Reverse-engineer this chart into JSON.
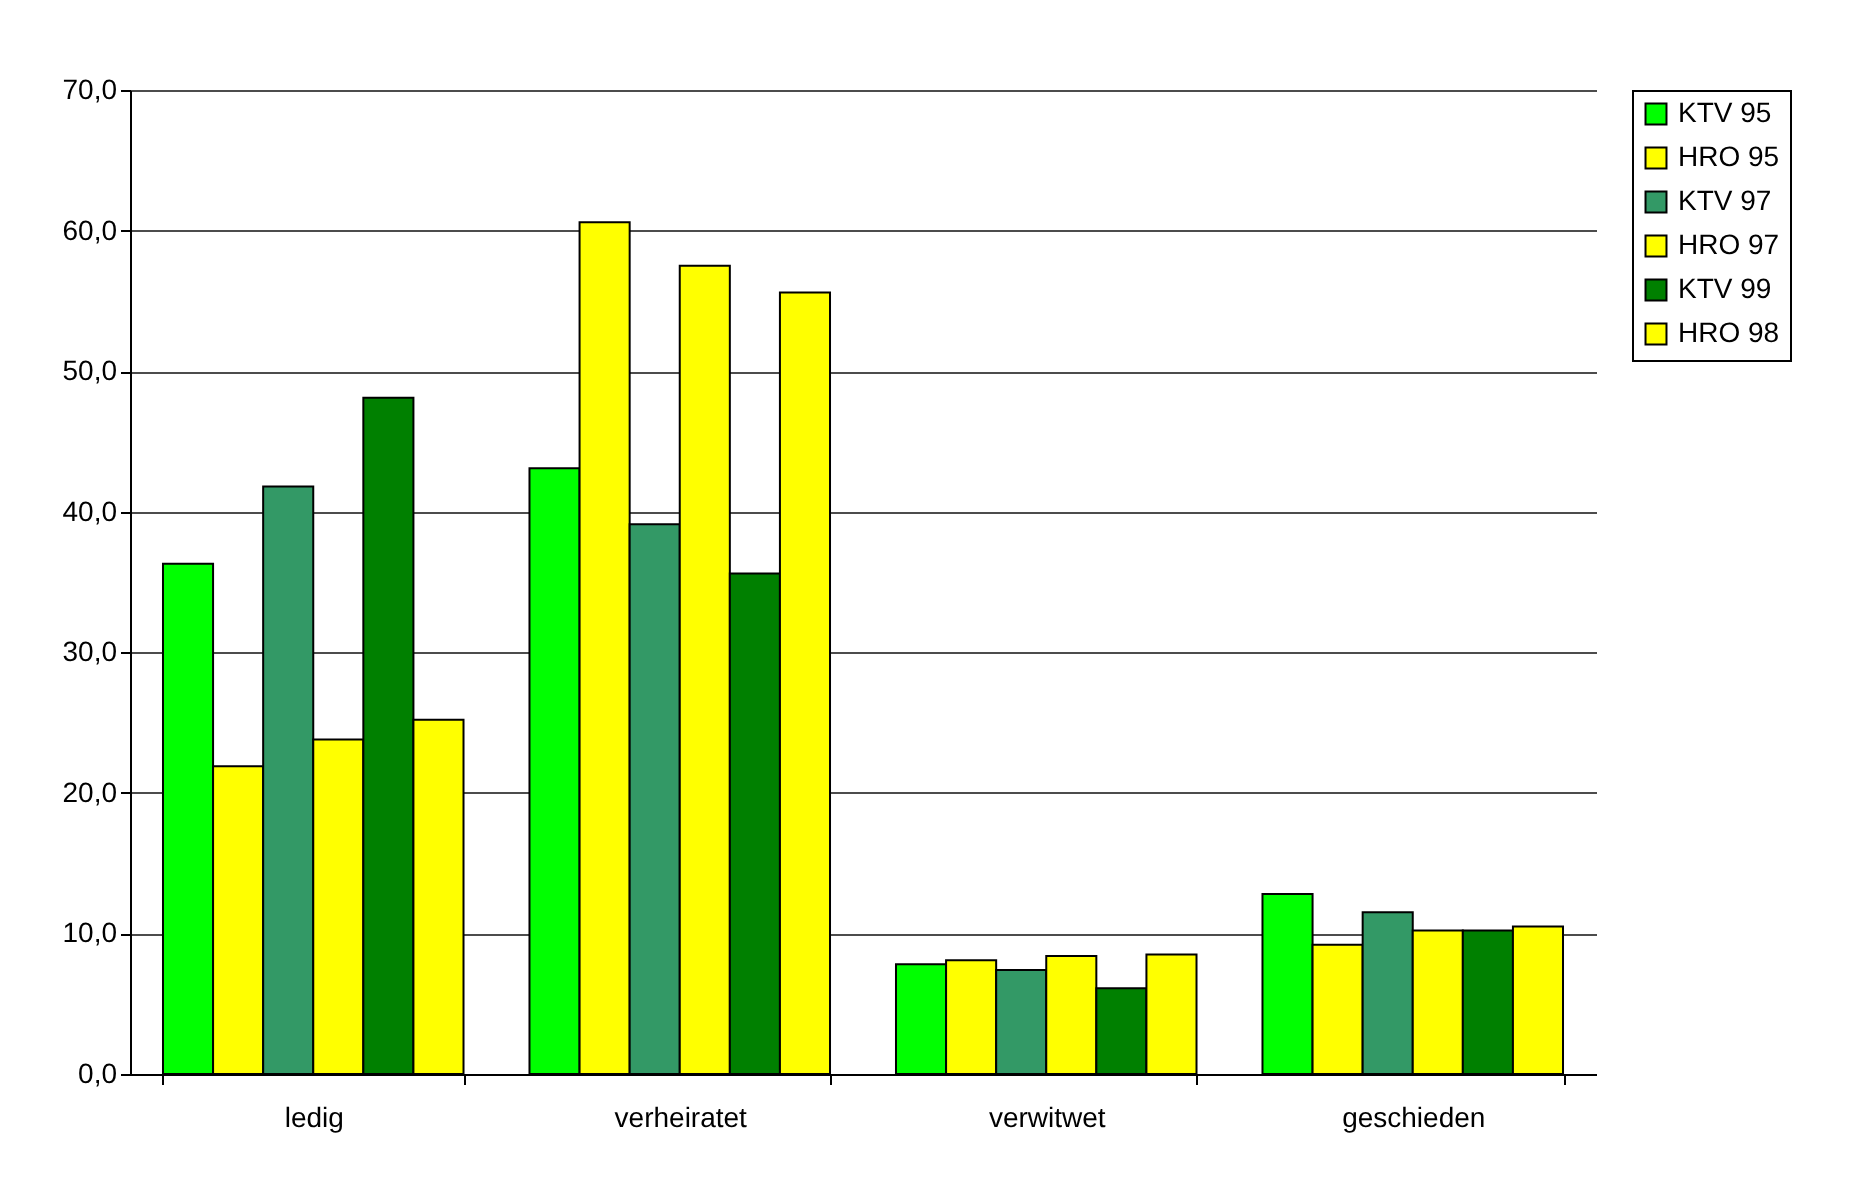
{
  "chart_data": {
    "type": "bar",
    "categories": [
      "ledig",
      "verheiratet",
      "verwitwet",
      "geschieden"
    ],
    "series": [
      {
        "name": "KTV 95",
        "color": "#00ff00",
        "values": [
          36.3,
          43.1,
          7.8,
          12.8
        ]
      },
      {
        "name": "HRO 95",
        "color": "#ffff00",
        "values": [
          21.9,
          60.6,
          8.1,
          9.2
        ]
      },
      {
        "name": "KTV 97",
        "color": "#339966",
        "values": [
          41.8,
          39.1,
          7.4,
          11.5
        ]
      },
      {
        "name": "HRO 97",
        "color": "#ffff00",
        "values": [
          23.8,
          57.5,
          8.4,
          10.2
        ]
      },
      {
        "name": "KTV 99",
        "color": "#008000",
        "values": [
          48.1,
          35.6,
          6.1,
          10.2
        ]
      },
      {
        "name": "HRO 98",
        "color": "#ffff00",
        "values": [
          25.2,
          55.6,
          8.5,
          10.5
        ]
      }
    ],
    "ylim": [
      0,
      70
    ],
    "yticks": [
      {
        "value": 0,
        "label": "0,0"
      },
      {
        "value": 10,
        "label": "10,0"
      },
      {
        "value": 20,
        "label": "20,0"
      },
      {
        "value": 30,
        "label": "30,0"
      },
      {
        "value": 40,
        "label": "40,0"
      },
      {
        "value": 50,
        "label": "50,0"
      },
      {
        "value": 60,
        "label": "60,0"
      },
      {
        "value": 70,
        "label": "70,0"
      }
    ],
    "grid": "y",
    "legend": "right"
  }
}
